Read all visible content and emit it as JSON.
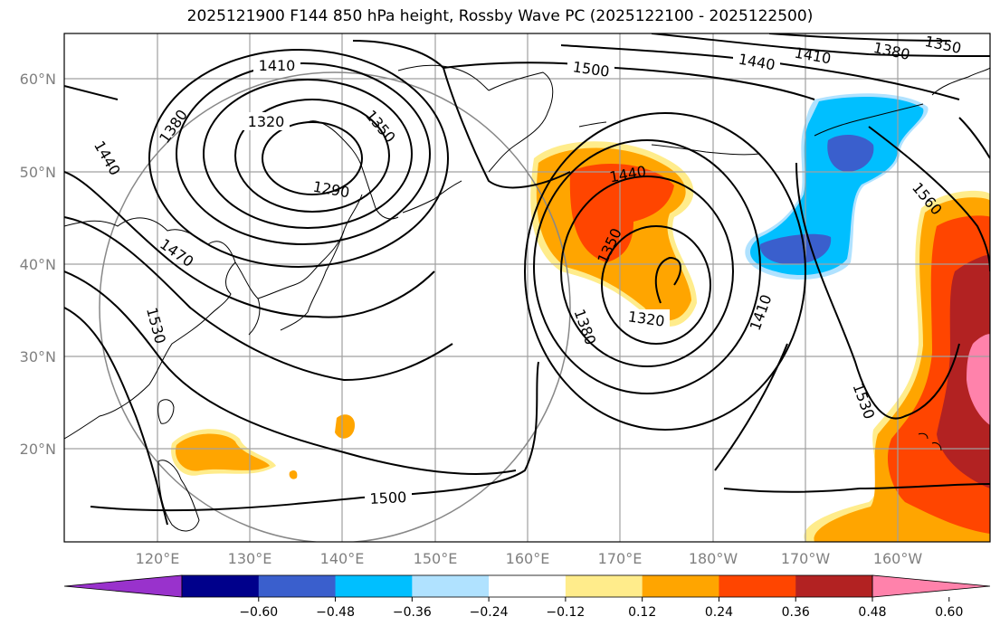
{
  "title": "2025121900 F144 850 hPa height, Rossby Wave PC (2025122100 - 2025122500)",
  "map": {
    "lat_labels": [
      "60°N",
      "50°N",
      "40°N",
      "30°N",
      "20°N"
    ],
    "lon_labels": [
      "120°E",
      "130°E",
      "140°E",
      "150°E",
      "160°E",
      "170°E",
      "180°W",
      "170°W",
      "160°W"
    ],
    "contour_labels": [
      "1410",
      "1380",
      "1320",
      "1350",
      "1290",
      "1440",
      "1470",
      "1530",
      "1500",
      "1440",
      "1350",
      "1380",
      "1320",
      "1410",
      "1530",
      "1560",
      "1440",
      "1410",
      "1380",
      "1350",
      "1500"
    ]
  },
  "colorbar": {
    "ticks": [
      "−0.60",
      "−0.48",
      "−0.36",
      "−0.24",
      "−0.12",
      "0.12",
      "0.24",
      "0.36",
      "0.48",
      "0.60"
    ],
    "colors": [
      "#9932cc",
      "#00008b",
      "#3a5fcd",
      "#00bfff",
      "#b0e2ff",
      "#ffffff",
      "#ffec8b",
      "#ffa500",
      "#ff4500",
      "#b22222",
      "#ff82ab"
    ]
  }
}
